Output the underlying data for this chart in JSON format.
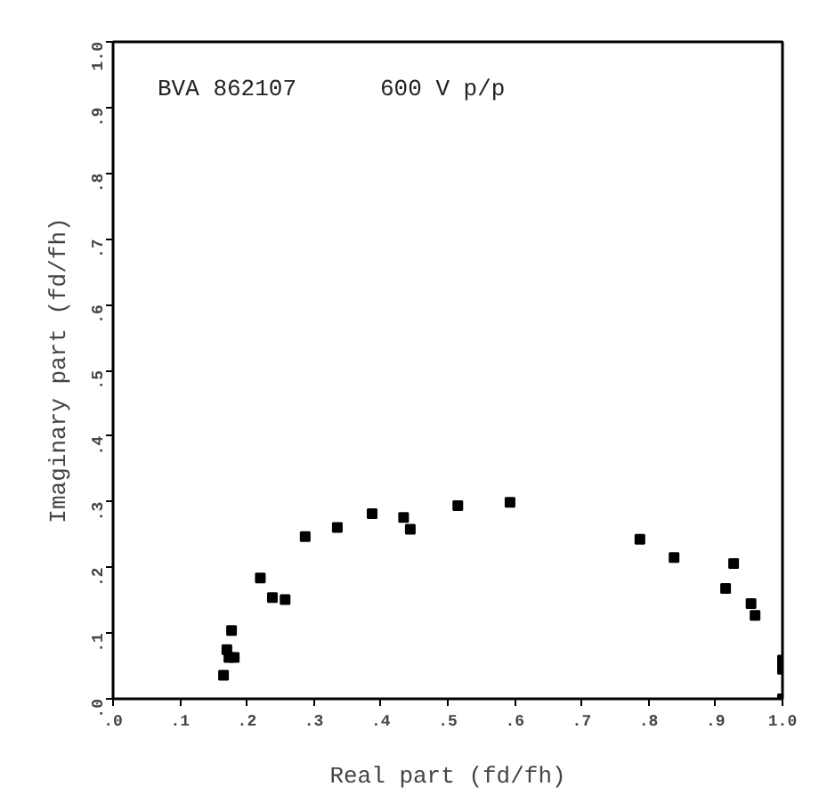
{
  "chart_data": {
    "type": "scatter",
    "xlabel": "Real part (fd/fh)",
    "ylabel": "Imaginary part (fd/fh)",
    "annotations": [
      "BVA 862107",
      "600 V p/p"
    ],
    "x": [
      0.165,
      0.173,
      0.17,
      0.177,
      0.181,
      0.22,
      0.238,
      0.257,
      0.287,
      0.335,
      0.387,
      0.434,
      0.444,
      0.515,
      0.593,
      0.787,
      0.838,
      0.915,
      0.927,
      0.953,
      0.959,
      1.0,
      1.0,
      1.0
    ],
    "values": [
      0.036,
      0.063,
      0.075,
      0.104,
      0.063,
      0.184,
      0.154,
      0.151,
      0.247,
      0.261,
      0.282,
      0.276,
      0.258,
      0.294,
      0.299,
      0.243,
      0.215,
      0.168,
      0.206,
      0.145,
      0.127,
      0.059,
      0.045,
      0.0
    ],
    "color": "#000000",
    "marker": "square",
    "grid": false,
    "xlim": [
      0,
      1
    ],
    "ylim": [
      0,
      1
    ],
    "xticks": [
      {
        "value": 0,
        "label": ".0"
      },
      {
        "value": 0.1,
        "label": ".1"
      },
      {
        "value": 0.2,
        "label": ".2"
      },
      {
        "value": 0.3,
        "label": ".3"
      },
      {
        "value": 0.4,
        "label": ".4"
      },
      {
        "value": 0.5,
        "label": ".5"
      },
      {
        "value": 0.6,
        "label": ".6"
      },
      {
        "value": 0.7,
        "label": ".7"
      },
      {
        "value": 0.8,
        "label": ".8"
      },
      {
        "value": 0.9,
        "label": ".9"
      },
      {
        "value": 1,
        "label": "1.0"
      }
    ],
    "yticks": [
      {
        "value": 0,
        "label": ".0"
      },
      {
        "value": 0.1,
        "label": ".1"
      },
      {
        "value": 0.2,
        "label": ".2"
      },
      {
        "value": 0.3,
        "label": ".3"
      },
      {
        "value": 0.4,
        "label": ".4"
      },
      {
        "value": 0.5,
        "label": ".5"
      },
      {
        "value": 0.6,
        "label": ".6"
      },
      {
        "value": 0.7,
        "label": ".7"
      },
      {
        "value": 0.8,
        "label": ".8"
      },
      {
        "value": 0.9,
        "label": ".9"
      },
      {
        "value": 1,
        "label": "1.0"
      }
    ]
  }
}
